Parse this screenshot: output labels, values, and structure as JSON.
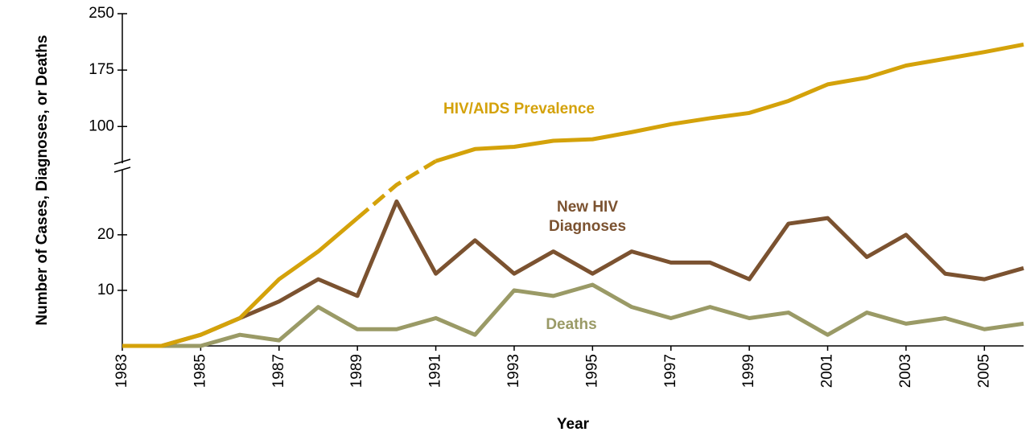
{
  "chart_data": {
    "type": "line",
    "y_label": "Number of Cases, Diagnoses, or Deaths",
    "x_label": "Year",
    "x": [
      1983,
      1984,
      1985,
      1986,
      1987,
      1988,
      1989,
      1990,
      1991,
      1992,
      1993,
      1994,
      1995,
      1996,
      1997,
      1998,
      1999,
      2000,
      2001,
      2002,
      2003,
      2004,
      2005,
      2006
    ],
    "xlim": [
      1983,
      2006
    ],
    "xticks": [
      1983,
      1985,
      1987,
      1989,
      1991,
      1993,
      1995,
      1997,
      1999,
      2001,
      2003,
      2005
    ],
    "ylim": [
      0,
      250
    ],
    "ybreak": [
      32,
      50
    ],
    "yticks": [
      10,
      20,
      100,
      175,
      250
    ],
    "series": [
      {
        "name": "HIV/AIDS Prevalence",
        "color": "#d4a20a",
        "dashed_x": [
          1989,
          1991
        ],
        "values": [
          0,
          0,
          2,
          5,
          12,
          17,
          23,
          29,
          54,
          70,
          73,
          81,
          83,
          92.5,
          103,
          111,
          118,
          134,
          156,
          165,
          181,
          190,
          199,
          209
        ]
      },
      {
        "name": "New HIV Diagnoses",
        "color": "#7b5230",
        "values": [
          0,
          0,
          2,
          5,
          8,
          12,
          9,
          26,
          13,
          19,
          13,
          17,
          13,
          17,
          15,
          15,
          12,
          22,
          23,
          16,
          20,
          13,
          12,
          14
        ]
      },
      {
        "name": "Deaths",
        "color": "#9a9a66",
        "values": [
          0,
          0,
          0,
          2,
          1,
          7,
          3,
          3,
          5,
          2,
          10,
          9,
          11,
          7,
          5,
          7,
          5,
          6,
          2,
          6,
          4,
          5,
          3,
          4
        ]
      }
    ]
  }
}
